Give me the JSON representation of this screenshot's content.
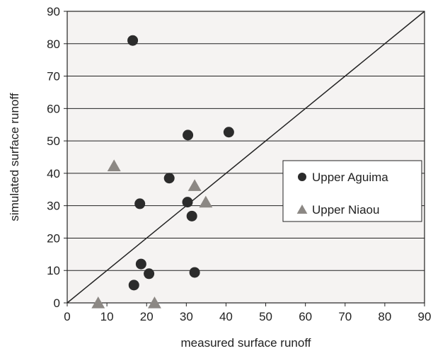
{
  "chart_data": {
    "type": "scatter",
    "title": "",
    "xlabel": "measured surface runoff",
    "ylabel": "simulated surface runoff",
    "xlim": [
      0,
      90
    ],
    "ylim": [
      0,
      90
    ],
    "xticks": [
      0,
      10,
      20,
      30,
      40,
      50,
      60,
      70,
      80,
      90
    ],
    "yticks": [
      0,
      10,
      20,
      30,
      40,
      50,
      60,
      70,
      80,
      90
    ],
    "grid": "horizontal",
    "legend_position": "right",
    "reference_line": "1:1",
    "series": [
      {
        "name": "Upper Aguima",
        "marker": "circle",
        "color": "#2b2b2b",
        "points": [
          [
            16.5,
            81
          ],
          [
            40.7,
            52.7
          ],
          [
            30.4,
            51.8
          ],
          [
            25.7,
            38.5
          ],
          [
            18.3,
            30.6
          ],
          [
            30.3,
            31.1
          ],
          [
            31.4,
            26.8
          ],
          [
            18.6,
            12
          ],
          [
            20.6,
            9
          ],
          [
            32.1,
            9.4
          ],
          [
            16.8,
            5.5
          ]
        ]
      },
      {
        "name": "Upper Niaou",
        "marker": "triangle",
        "color": "#8c8884",
        "points": [
          [
            11.8,
            42.3
          ],
          [
            32.1,
            36.2
          ],
          [
            34.9,
            31.1
          ],
          [
            7.8,
            0
          ],
          [
            22,
            0
          ]
        ]
      }
    ]
  }
}
